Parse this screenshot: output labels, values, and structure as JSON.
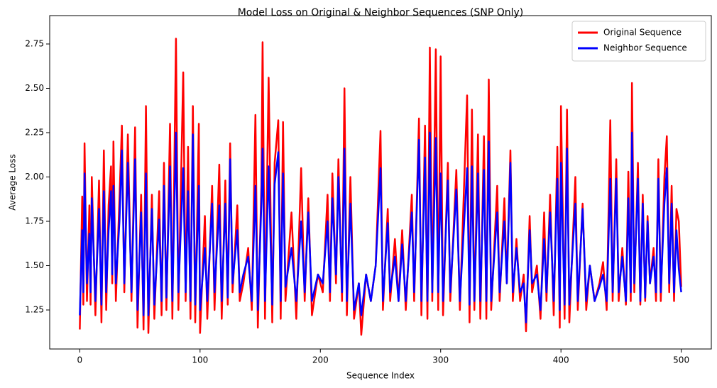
{
  "chart_data": {
    "type": "line",
    "title": "Model Loss on Original & Neighbor Sequences (SNP Only)",
    "x_label": "Sequence Index",
    "y_label": "Average Loss",
    "x": [
      0,
      2,
      3,
      4,
      6,
      8,
      9,
      10,
      13,
      16,
      18,
      20,
      22,
      24,
      26,
      27,
      28,
      30,
      33,
      35,
      37,
      40,
      43,
      46,
      48,
      51,
      53,
      55,
      57,
      60,
      62,
      66,
      68,
      70,
      72,
      75,
      77,
      80,
      82,
      86,
      88,
      90,
      92,
      94,
      96,
      99,
      100,
      104,
      106,
      110,
      112,
      116,
      118,
      121,
      123,
      125,
      127,
      131,
      133,
      136,
      140,
      143,
      146,
      148,
      151,
      152,
      154,
      157,
      160,
      162,
      165,
      167,
      169,
      171,
      176,
      180,
      184,
      187,
      190,
      193,
      198,
      202,
      206,
      208,
      210,
      213,
      215,
      218,
      220,
      222,
      225,
      228,
      232,
      234,
      238,
      242,
      246,
      250,
      252,
      256,
      258,
      262,
      265,
      268,
      271,
      276,
      278,
      282,
      284,
      287,
      289,
      291,
      293,
      296,
      298,
      300,
      302,
      306,
      308,
      313,
      316,
      322,
      324,
      326,
      328,
      331,
      333,
      336,
      338,
      340,
      342,
      347,
      349,
      353,
      355,
      358,
      360,
      363,
      366,
      369,
      371,
      374,
      376,
      380,
      383,
      386,
      388,
      391,
      394,
      397,
      399,
      400,
      403,
      405,
      407,
      412,
      414,
      418,
      421,
      424,
      428,
      432,
      435,
      438,
      441,
      443,
      446,
      448,
      451,
      454,
      456,
      458,
      459,
      461,
      464,
      466,
      468,
      470,
      472,
      474,
      477,
      479,
      481,
      483,
      486,
      488,
      490,
      492,
      494,
      496,
      498,
      500
    ],
    "series": [
      {
        "name": "Original Sequence",
        "color": "#ff0000",
        "values": [
          1.14,
          1.89,
          1.28,
          2.19,
          1.3,
          1.84,
          1.28,
          2.0,
          1.22,
          1.98,
          1.18,
          2.15,
          1.25,
          1.84,
          2.06,
          1.4,
          2.2,
          1.3,
          1.88,
          2.29,
          1.35,
          2.24,
          1.3,
          2.28,
          1.15,
          1.9,
          1.14,
          2.4,
          1.12,
          1.9,
          1.2,
          1.92,
          1.22,
          2.08,
          1.25,
          2.3,
          1.2,
          2.78,
          1.25,
          2.59,
          1.3,
          2.17,
          1.2,
          2.4,
          1.18,
          2.3,
          1.12,
          1.78,
          1.2,
          1.95,
          1.25,
          2.07,
          1.2,
          1.98,
          1.28,
          2.19,
          1.35,
          1.84,
          1.3,
          1.4,
          1.6,
          1.25,
          2.35,
          1.15,
          1.95,
          2.76,
          1.2,
          2.56,
          1.18,
          2.08,
          2.32,
          1.2,
          2.31,
          1.3,
          1.8,
          1.2,
          2.05,
          1.3,
          1.88,
          1.22,
          1.45,
          1.35,
          1.9,
          1.3,
          2.02,
          1.4,
          2.1,
          1.3,
          2.5,
          1.22,
          2.0,
          1.2,
          1.4,
          1.11,
          1.45,
          1.3,
          1.5,
          2.26,
          1.25,
          1.82,
          1.3,
          1.65,
          1.3,
          1.7,
          1.25,
          1.9,
          1.3,
          2.33,
          1.22,
          2.29,
          1.2,
          2.73,
          1.3,
          2.72,
          1.25,
          2.68,
          1.22,
          2.08,
          1.3,
          2.04,
          1.25,
          2.46,
          1.18,
          2.38,
          1.25,
          2.24,
          1.2,
          2.23,
          1.2,
          2.55,
          1.25,
          1.95,
          1.3,
          1.88,
          1.4,
          2.15,
          1.3,
          1.65,
          1.3,
          1.45,
          1.13,
          1.78,
          1.35,
          1.5,
          1.2,
          1.8,
          1.3,
          1.9,
          1.22,
          2.17,
          1.15,
          2.4,
          1.2,
          2.38,
          1.18,
          2.0,
          1.25,
          1.85,
          1.25,
          1.5,
          1.3,
          1.4,
          1.52,
          1.25,
          2.32,
          1.3,
          2.1,
          1.3,
          1.6,
          1.28,
          2.03,
          1.3,
          2.53,
          1.35,
          2.08,
          1.28,
          1.9,
          1.3,
          1.78,
          1.4,
          1.6,
          1.3,
          2.1,
          1.3,
          2.0,
          2.23,
          1.35,
          1.95,
          1.3,
          1.82,
          1.75,
          1.38
        ]
      },
      {
        "name": "Neighbor Sequence",
        "color": "#0000ff",
        "values": [
          1.22,
          1.7,
          1.35,
          2.02,
          1.4,
          1.68,
          1.35,
          1.88,
          1.3,
          1.82,
          1.28,
          1.92,
          1.35,
          1.7,
          1.92,
          1.45,
          1.95,
          1.4,
          1.75,
          2.15,
          1.4,
          2.08,
          1.35,
          2.1,
          1.25,
          1.8,
          1.22,
          2.02,
          1.22,
          1.82,
          1.28,
          1.76,
          1.3,
          1.95,
          1.32,
          2.06,
          1.3,
          2.25,
          1.35,
          2.05,
          1.35,
          1.92,
          1.3,
          2.24,
          1.28,
          1.95,
          1.25,
          1.6,
          1.3,
          1.85,
          1.35,
          1.84,
          1.3,
          1.85,
          1.32,
          2.1,
          1.4,
          1.7,
          1.35,
          1.45,
          1.55,
          1.3,
          1.95,
          1.25,
          1.85,
          2.16,
          1.3,
          2.06,
          1.28,
          1.96,
          2.14,
          1.3,
          2.02,
          1.38,
          1.6,
          1.3,
          1.75,
          1.35,
          1.8,
          1.3,
          1.45,
          1.4,
          1.75,
          1.35,
          1.88,
          1.45,
          2.0,
          1.35,
          2.16,
          1.3,
          1.85,
          1.25,
          1.4,
          1.22,
          1.45,
          1.3,
          1.5,
          2.05,
          1.3,
          1.74,
          1.35,
          1.55,
          1.3,
          1.62,
          1.3,
          1.8,
          1.35,
          2.21,
          1.3,
          2.11,
          1.3,
          2.25,
          1.35,
          2.22,
          1.35,
          2.02,
          1.3,
          1.98,
          1.35,
          1.93,
          1.3,
          2.05,
          1.28,
          2.06,
          1.3,
          2.02,
          1.3,
          2.04,
          1.3,
          2.2,
          1.3,
          1.8,
          1.35,
          1.75,
          1.4,
          2.08,
          1.35,
          1.6,
          1.35,
          1.4,
          1.18,
          1.7,
          1.4,
          1.45,
          1.25,
          1.65,
          1.35,
          1.8,
          1.3,
          1.99,
          1.25,
          2.08,
          1.28,
          2.16,
          1.28,
          1.85,
          1.3,
          1.82,
          1.3,
          1.5,
          1.3,
          1.38,
          1.45,
          1.3,
          1.99,
          1.35,
          1.99,
          1.35,
          1.55,
          1.3,
          1.88,
          1.35,
          2.25,
          1.4,
          1.99,
          1.3,
          1.85,
          1.32,
          1.75,
          1.4,
          1.55,
          1.35,
          1.99,
          1.35,
          1.85,
          2.05,
          1.4,
          1.85,
          1.35,
          1.7,
          1.48,
          1.35
        ]
      }
    ],
    "xlim": [
      -25,
      525
    ],
    "ylim": [
      1.03,
      2.91
    ],
    "xticks": [
      0,
      100,
      200,
      300,
      400,
      500
    ],
    "yticks": [
      1.25,
      {
        "value": 1.5,
        "label": "1.50"
      },
      1.75,
      {
        "value": 2.0,
        "label": "2.00"
      },
      2.25,
      {
        "value": 2.5,
        "label": "2.50"
      },
      2.75
    ],
    "legend_position": "upper right"
  }
}
